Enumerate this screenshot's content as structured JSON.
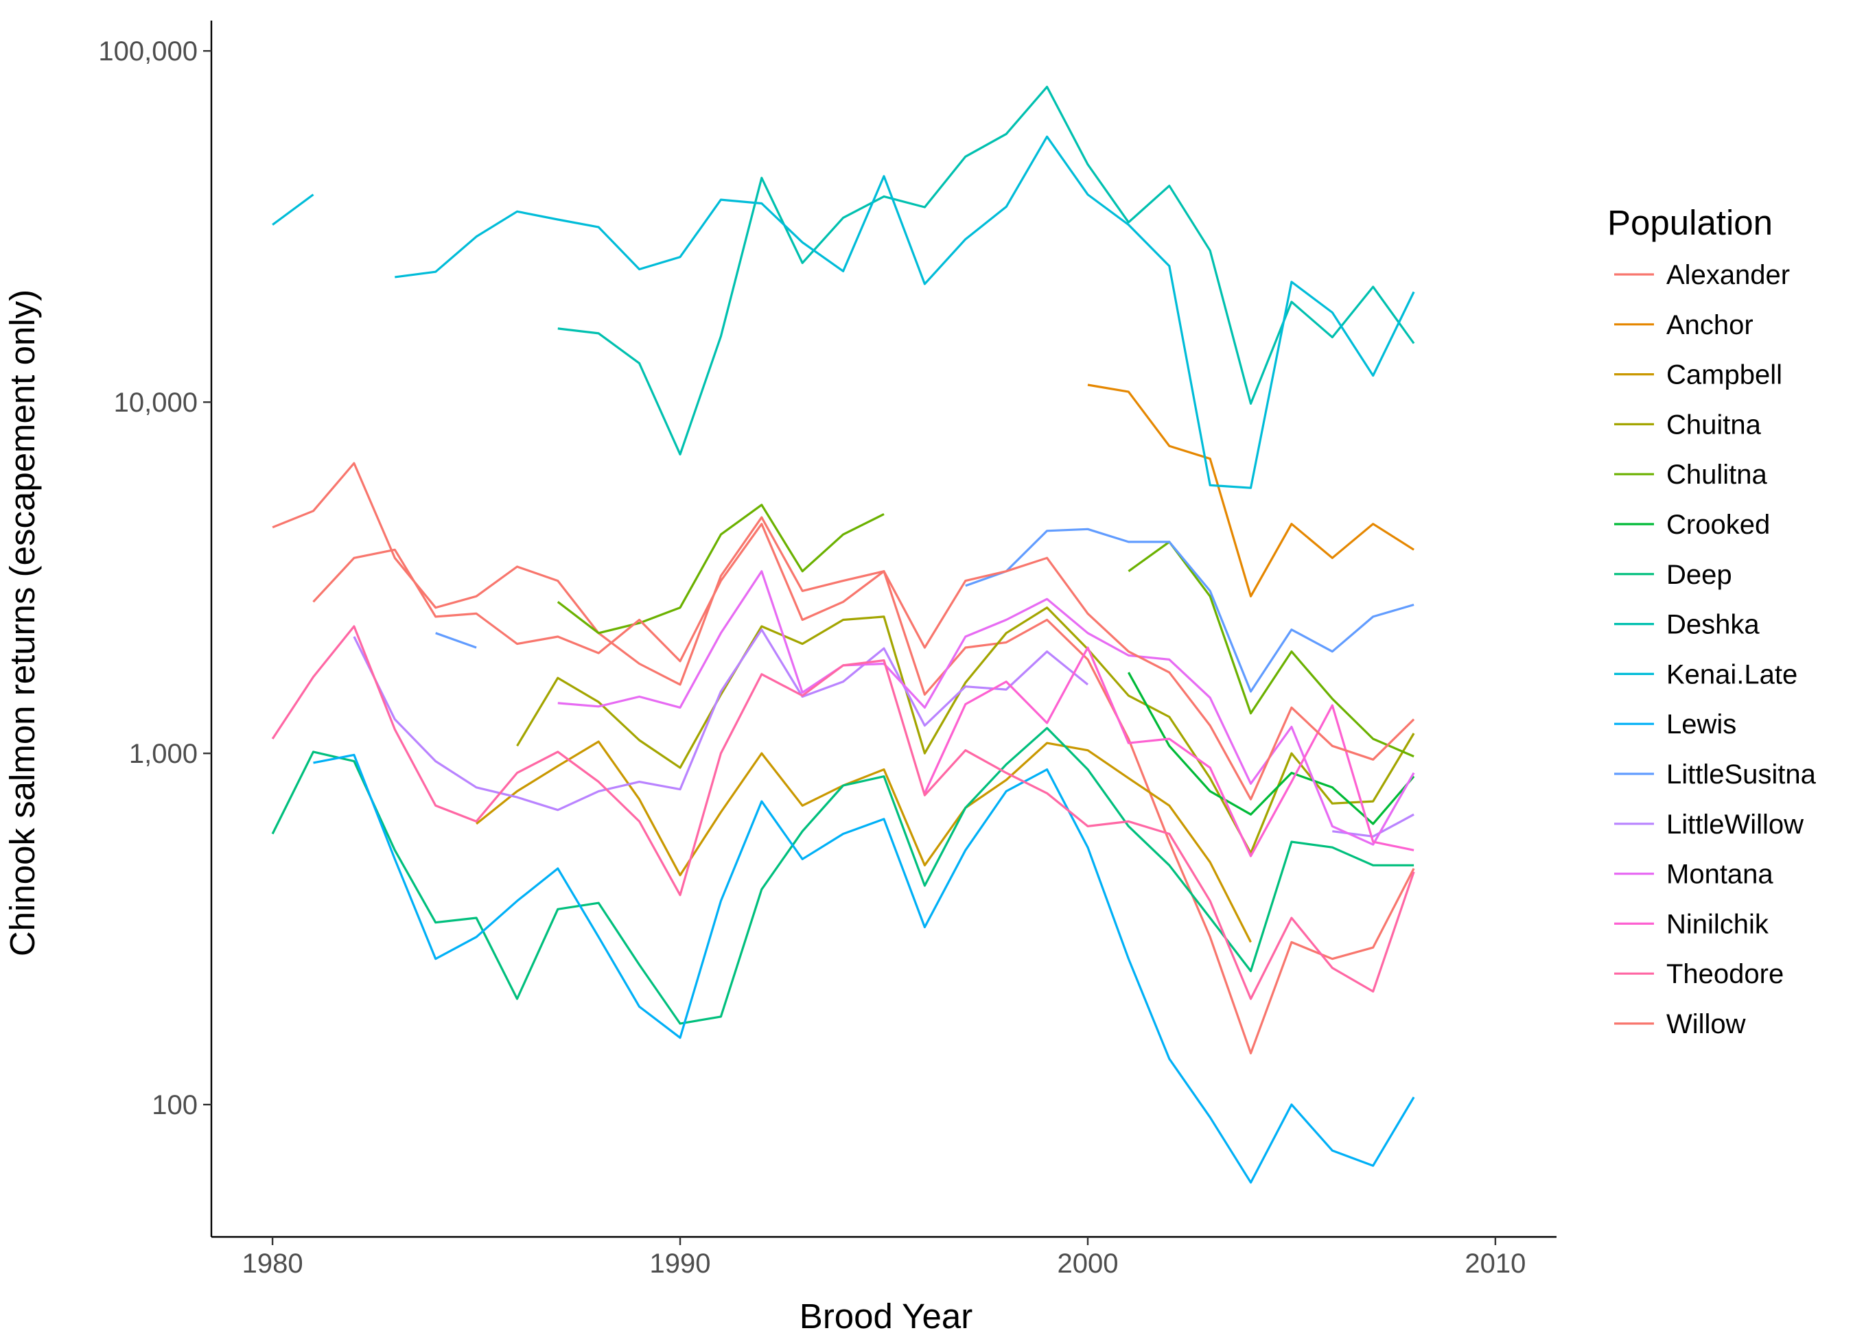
{
  "chart_data": {
    "type": "line",
    "title": "",
    "xlabel": "Brood Year",
    "ylabel": "Chinook salmon returns (escapement only)",
    "xlim": [
      1978.5,
      2011.5
    ],
    "ylim": [
      42,
      122000
    ],
    "y_scale": "log10",
    "grid": false,
    "legend_title": "Population",
    "legend_position": "right",
    "x_ticks": [
      1980,
      1990,
      2000,
      2010
    ],
    "x_tick_labels": [
      "1980",
      "1990",
      "2000",
      "2010"
    ],
    "y_ticks": [
      100,
      1000,
      10000,
      100000
    ],
    "y_tick_labels": [
      "100",
      "1,000",
      "10,000",
      "100,000"
    ],
    "x": [
      1980,
      1981,
      1982,
      1983,
      1984,
      1985,
      1986,
      1987,
      1988,
      1989,
      1990,
      1991,
      1992,
      1993,
      1994,
      1995,
      1996,
      1997,
      1998,
      1999,
      2000,
      2001,
      2002,
      2003,
      2004,
      2005,
      2006,
      2007,
      2008
    ],
    "series": [
      {
        "name": "Alexander",
        "color": "#F8766D",
        "values": [
          4400,
          4900,
          6700,
          3600,
          2600,
          2800,
          3400,
          3100,
          2200,
          1800,
          1570,
          3200,
          4700,
          2900,
          3100,
          3300,
          1470,
          2000,
          2070,
          2400,
          1850,
          1100,
          560,
          300,
          140,
          290,
          260,
          280,
          470
        ]
      },
      {
        "name": "Anchor",
        "color": "#E58700",
        "values": [
          null,
          null,
          null,
          null,
          null,
          null,
          null,
          null,
          null,
          null,
          null,
          null,
          null,
          null,
          null,
          null,
          null,
          null,
          null,
          null,
          11200,
          10700,
          7500,
          6900,
          2800,
          4500,
          3600,
          4500,
          3800
        ]
      },
      {
        "name": "Campbell",
        "color": "#C99800",
        "values": [
          null,
          null,
          null,
          null,
          null,
          630,
          780,
          920,
          1080,
          740,
          450,
          680,
          1000,
          710,
          810,
          900,
          480,
          700,
          840,
          1070,
          1020,
          850,
          710,
          490,
          290,
          null,
          null,
          null,
          null
        ]
      },
      {
        "name": "Chuitna",
        "color": "#A3A500",
        "values": [
          null,
          null,
          null,
          null,
          null,
          null,
          1050,
          1640,
          1400,
          1090,
          910,
          1470,
          2300,
          2050,
          2400,
          2450,
          1000,
          1590,
          2200,
          2600,
          1980,
          1460,
          1270,
          850,
          520,
          1000,
          720,
          730,
          1140
        ]
      },
      {
        "name": "Chulitna",
        "color": "#6BB100",
        "values": [
          null,
          null,
          null,
          null,
          null,
          null,
          null,
          2700,
          2200,
          2350,
          2600,
          4200,
          5100,
          3300,
          4200,
          4800,
          null,
          null,
          null,
          null,
          null,
          3300,
          4000,
          2800,
          1300,
          1950,
          1430,
          1100,
          980
        ]
      },
      {
        "name": "Crooked",
        "color": "#00BA38",
        "values": [
          null,
          null,
          null,
          null,
          null,
          null,
          null,
          null,
          null,
          null,
          null,
          null,
          null,
          null,
          null,
          null,
          null,
          null,
          null,
          null,
          null,
          1700,
          1050,
          780,
          670,
          880,
          800,
          630,
          860
        ]
      },
      {
        "name": "Deep",
        "color": "#00BF7D",
        "values": [
          590,
          1010,
          950,
          530,
          330,
          340,
          200,
          360,
          375,
          250,
          170,
          178,
          410,
          600,
          810,
          860,
          420,
          700,
          930,
          1180,
          900,
          620,
          480,
          340,
          240,
          560,
          540,
          480,
          480
        ]
      },
      {
        "name": "Deshka",
        "color": "#00C0AF",
        "values": [
          null,
          null,
          null,
          null,
          null,
          null,
          null,
          16200,
          15700,
          12900,
          7100,
          15400,
          43500,
          24900,
          33500,
          38500,
          35900,
          50000,
          58000,
          79000,
          47500,
          32500,
          41300,
          27000,
          9900,
          19300,
          15300,
          21300,
          14700
        ]
      },
      {
        "name": "Kenai.Late",
        "color": "#00BCD8",
        "values": [
          32000,
          39000,
          null,
          22700,
          23500,
          29600,
          34900,
          33100,
          31500,
          23900,
          25900,
          37700,
          36800,
          28500,
          23600,
          44000,
          21700,
          29100,
          36000,
          57000,
          39000,
          32000,
          24400,
          5800,
          5700,
          22000,
          18000,
          11900,
          20600
        ]
      },
      {
        "name": "Lewis",
        "color": "#00B0F6",
        "values": [
          null,
          940,
          990,
          500,
          260,
          300,
          380,
          470,
          300,
          190,
          155,
          380,
          730,
          500,
          590,
          650,
          320,
          530,
          780,
          900,
          540,
          260,
          135,
          92,
          60,
          100,
          74,
          67,
          105
        ]
      },
      {
        "name": "LittleSusitna",
        "color": "#619CFF",
        "values": [
          null,
          null,
          null,
          null,
          2200,
          2000,
          null,
          null,
          null,
          null,
          null,
          null,
          null,
          null,
          null,
          null,
          null,
          3000,
          3300,
          4300,
          4350,
          4000,
          4000,
          2900,
          1500,
          2250,
          1950,
          2450,
          2650
        ]
      },
      {
        "name": "LittleWillow",
        "color": "#B983FF",
        "values": [
          null,
          null,
          2150,
          1250,
          950,
          800,
          750,
          690,
          780,
          830,
          790,
          1500,
          2250,
          1450,
          1600,
          1990,
          1200,
          1550,
          1520,
          1950,
          1570,
          null,
          null,
          null,
          null,
          null,
          600,
          580,
          670
        ]
      },
      {
        "name": "Montana",
        "color": "#E76BF3",
        "values": [
          null,
          null,
          null,
          null,
          null,
          null,
          null,
          1390,
          1360,
          1450,
          1350,
          2200,
          3300,
          1490,
          1780,
          1800,
          1350,
          2150,
          2400,
          2750,
          2200,
          1900,
          1850,
          1440,
          820,
          1190,
          620,
          550,
          880
        ]
      },
      {
        "name": "Ninilchik",
        "color": "#FD61D1",
        "values": [
          null,
          null,
          null,
          null,
          null,
          null,
          null,
          null,
          null,
          null,
          null,
          null,
          null,
          null,
          null,
          null,
          770,
          1380,
          1600,
          1220,
          2000,
          1070,
          1100,
          910,
          510,
          830,
          1370,
          560,
          530
        ]
      },
      {
        "name": "Theodore",
        "color": "#FF67A4",
        "values": [
          1100,
          1650,
          2300,
          1170,
          710,
          640,
          880,
          1010,
          830,
          640,
          395,
          1000,
          1680,
          1460,
          1780,
          1840,
          760,
          1020,
          880,
          770,
          620,
          640,
          590,
          380,
          200,
          340,
          245,
          210,
          460
        ]
      },
      {
        "name": "Willow",
        "color": "#F8766D",
        "values": [
          null,
          2700,
          3600,
          3800,
          2450,
          2500,
          2050,
          2150,
          1930,
          2400,
          1830,
          3100,
          4500,
          2400,
          2700,
          3300,
          2000,
          3100,
          3300,
          3600,
          2500,
          1950,
          1700,
          1200,
          740,
          1350,
          1050,
          960,
          1250
        ]
      }
    ]
  }
}
